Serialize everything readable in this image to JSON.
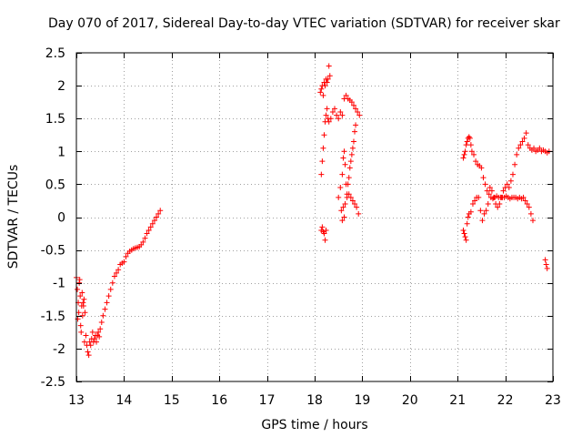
{
  "chart_data": {
    "type": "scatter",
    "title": "Day 070 of 2017, Sidereal Day-to-day VTEC variation (SDTVAR) for receiver skar",
    "xlabel": "GPS time / hours",
    "ylabel": "SDTVAR / TECUs",
    "xlim": [
      13,
      23
    ],
    "ylim": [
      -2.5,
      2.5
    ],
    "grid": true,
    "marker": "+",
    "color": "#ff0000",
    "x_ticks": [
      13,
      14,
      15,
      16,
      17,
      18,
      19,
      20,
      21,
      22,
      23
    ],
    "x_tick_labels": [
      "13",
      "14",
      "15",
      "16",
      "17",
      "18",
      "19",
      "20",
      "21",
      "22",
      "23"
    ],
    "y_ticks": [
      2.5,
      2,
      1.5,
      1,
      0.5,
      0,
      -0.5,
      -1,
      -1.5,
      -2,
      -2.5
    ],
    "y_tick_labels": [
      "2.5",
      "2",
      "1.5",
      "1",
      "0.5",
      "0",
      "-0.5",
      "-1",
      "-1.5",
      "-2",
      "-2.5"
    ],
    "series": [
      {
        "name": "SDTVAR",
        "points": [
          [
            13.0,
            -0.92
          ],
          [
            13.02,
            -1.1
          ],
          [
            13.03,
            -1.55
          ],
          [
            13.04,
            -1.3
          ],
          [
            13.05,
            -1.45
          ],
          [
            13.06,
            -1.0
          ],
          [
            13.07,
            -0.95
          ],
          [
            13.08,
            -1.2
          ],
          [
            13.09,
            -1.65
          ],
          [
            13.1,
            -1.75
          ],
          [
            13.11,
            -1.35
          ],
          [
            13.12,
            -1.15
          ],
          [
            13.13,
            -1.5
          ],
          [
            13.14,
            -1.3
          ],
          [
            13.15,
            -1.35
          ],
          [
            13.16,
            -1.25
          ],
          [
            13.17,
            -1.9
          ],
          [
            13.18,
            -1.45
          ],
          [
            13.2,
            -1.8
          ],
          [
            13.22,
            -1.95
          ],
          [
            13.24,
            -2.05
          ],
          [
            13.26,
            -2.1
          ],
          [
            13.28,
            -1.9
          ],
          [
            13.3,
            -1.95
          ],
          [
            13.32,
            -1.85
          ],
          [
            13.34,
            -1.75
          ],
          [
            13.36,
            -1.9
          ],
          [
            13.38,
            -1.85
          ],
          [
            13.4,
            -1.8
          ],
          [
            13.42,
            -1.9
          ],
          [
            13.44,
            -1.8
          ],
          [
            13.46,
            -1.75
          ],
          [
            13.48,
            -1.82
          ],
          [
            13.5,
            -1.7
          ],
          [
            13.53,
            -1.6
          ],
          [
            13.56,
            -1.5
          ],
          [
            13.6,
            -1.4
          ],
          [
            13.64,
            -1.3
          ],
          [
            13.68,
            -1.2
          ],
          [
            13.72,
            -1.1
          ],
          [
            13.76,
            -1.0
          ],
          [
            13.8,
            -0.9
          ],
          [
            13.84,
            -0.85
          ],
          [
            13.88,
            -0.8
          ],
          [
            13.92,
            -0.72
          ],
          [
            13.96,
            -0.7
          ],
          [
            14.0,
            -0.68
          ],
          [
            14.04,
            -0.6
          ],
          [
            14.08,
            -0.55
          ],
          [
            14.12,
            -0.52
          ],
          [
            14.16,
            -0.5
          ],
          [
            14.2,
            -0.48
          ],
          [
            14.24,
            -0.47
          ],
          [
            14.28,
            -0.46
          ],
          [
            14.32,
            -0.45
          ],
          [
            14.36,
            -0.42
          ],
          [
            14.4,
            -0.38
          ],
          [
            14.44,
            -0.32
          ],
          [
            14.48,
            -0.25
          ],
          [
            14.52,
            -0.2
          ],
          [
            14.56,
            -0.15
          ],
          [
            14.6,
            -0.1
          ],
          [
            14.64,
            -0.05
          ],
          [
            14.68,
            0.0
          ],
          [
            14.72,
            0.05
          ],
          [
            14.76,
            0.1
          ],
          [
            18.12,
            1.9
          ],
          [
            18.14,
            1.95
          ],
          [
            18.16,
            2.0
          ],
          [
            18.18,
            1.85
          ],
          [
            18.2,
            2.05
          ],
          [
            18.22,
            2.0
          ],
          [
            18.24,
            2.1
          ],
          [
            18.26,
            2.05
          ],
          [
            18.28,
            2.1
          ],
          [
            18.3,
            2.3
          ],
          [
            18.32,
            2.15
          ],
          [
            18.14,
            0.65
          ],
          [
            18.16,
            0.85
          ],
          [
            18.18,
            1.05
          ],
          [
            18.2,
            1.25
          ],
          [
            18.22,
            1.45
          ],
          [
            18.24,
            1.55
          ],
          [
            18.26,
            1.65
          ],
          [
            18.28,
            1.5
          ],
          [
            18.3,
            1.45
          ],
          [
            18.34,
            1.5
          ],
          [
            18.38,
            1.6
          ],
          [
            18.42,
            1.65
          ],
          [
            18.46,
            1.55
          ],
          [
            18.5,
            1.5
          ],
          [
            18.54,
            1.6
          ],
          [
            18.58,
            1.55
          ],
          [
            18.62,
            1.8
          ],
          [
            18.66,
            1.85
          ],
          [
            18.7,
            1.8
          ],
          [
            18.74,
            1.78
          ],
          [
            18.78,
            1.75
          ],
          [
            18.82,
            1.7
          ],
          [
            18.86,
            1.65
          ],
          [
            18.9,
            1.6
          ],
          [
            18.94,
            1.55
          ],
          [
            18.14,
            -0.2
          ],
          [
            18.16,
            -0.15
          ],
          [
            18.18,
            -0.22
          ],
          [
            18.2,
            -0.25
          ],
          [
            18.22,
            -0.35
          ],
          [
            18.24,
            -0.2
          ],
          [
            18.5,
            0.3
          ],
          [
            18.54,
            0.45
          ],
          [
            18.58,
            0.65
          ],
          [
            18.6,
            0.9
          ],
          [
            18.62,
            1.0
          ],
          [
            18.64,
            0.8
          ],
          [
            18.66,
            0.5
          ],
          [
            18.68,
            0.35
          ],
          [
            18.7,
            0.5
          ],
          [
            18.72,
            0.6
          ],
          [
            18.74,
            0.75
          ],
          [
            18.76,
            0.85
          ],
          [
            18.78,
            0.95
          ],
          [
            18.8,
            1.05
          ],
          [
            18.82,
            1.15
          ],
          [
            18.84,
            1.3
          ],
          [
            18.86,
            1.4
          ],
          [
            18.56,
            0.1
          ],
          [
            18.6,
            0.15
          ],
          [
            18.64,
            0.2
          ],
          [
            18.68,
            0.3
          ],
          [
            18.72,
            0.35
          ],
          [
            18.76,
            0.3
          ],
          [
            18.8,
            0.25
          ],
          [
            18.84,
            0.2
          ],
          [
            18.88,
            0.15
          ],
          [
            18.92,
            0.05
          ],
          [
            18.58,
            -0.05
          ],
          [
            18.62,
            0.0
          ],
          [
            21.12,
            0.9
          ],
          [
            21.14,
            0.95
          ],
          [
            21.16,
            1.0
          ],
          [
            21.18,
            1.1
          ],
          [
            21.2,
            1.15
          ],
          [
            21.22,
            1.2
          ],
          [
            21.24,
            1.22
          ],
          [
            21.26,
            1.2
          ],
          [
            21.28,
            1.1
          ],
          [
            21.3,
            1.0
          ],
          [
            21.34,
            0.95
          ],
          [
            21.38,
            0.85
          ],
          [
            21.42,
            0.8
          ],
          [
            21.46,
            0.78
          ],
          [
            21.5,
            0.75
          ],
          [
            21.54,
            0.6
          ],
          [
            21.58,
            0.5
          ],
          [
            21.62,
            0.4
          ],
          [
            21.66,
            0.35
          ],
          [
            21.7,
            0.3
          ],
          [
            21.74,
            0.28
          ],
          [
            21.78,
            0.3
          ],
          [
            21.82,
            0.32
          ],
          [
            21.86,
            0.3
          ],
          [
            21.9,
            0.3
          ],
          [
            21.94,
            0.3
          ],
          [
            21.98,
            0.3
          ],
          [
            22.02,
            0.32
          ],
          [
            22.06,
            0.3
          ],
          [
            22.1,
            0.28
          ],
          [
            22.14,
            0.3
          ],
          [
            22.18,
            0.3
          ],
          [
            22.22,
            0.3
          ],
          [
            22.26,
            0.28
          ],
          [
            22.3,
            0.3
          ],
          [
            22.34,
            0.28
          ],
          [
            22.38,
            0.3
          ],
          [
            22.42,
            0.25
          ],
          [
            22.46,
            0.2
          ],
          [
            22.5,
            0.15
          ],
          [
            22.54,
            0.05
          ],
          [
            22.58,
            -0.05
          ],
          [
            21.12,
            -0.2
          ],
          [
            21.14,
            -0.25
          ],
          [
            21.16,
            -0.3
          ],
          [
            21.18,
            -0.35
          ],
          [
            21.2,
            -0.1
          ],
          [
            21.22,
            0.0
          ],
          [
            21.24,
            0.05
          ],
          [
            21.28,
            0.08
          ],
          [
            21.32,
            0.2
          ],
          [
            21.36,
            0.25
          ],
          [
            21.4,
            0.3
          ],
          [
            21.44,
            0.3
          ],
          [
            21.48,
            0.1
          ],
          [
            21.52,
            -0.05
          ],
          [
            21.56,
            0.05
          ],
          [
            21.6,
            0.1
          ],
          [
            21.64,
            0.2
          ],
          [
            21.68,
            0.45
          ],
          [
            21.72,
            0.4
          ],
          [
            21.76,
            0.3
          ],
          [
            21.8,
            0.2
          ],
          [
            21.84,
            0.15
          ],
          [
            21.88,
            0.2
          ],
          [
            21.92,
            0.3
          ],
          [
            21.96,
            0.4
          ],
          [
            22.0,
            0.45
          ],
          [
            22.04,
            0.5
          ],
          [
            22.08,
            0.45
          ],
          [
            22.12,
            0.55
          ],
          [
            22.16,
            0.65
          ],
          [
            22.2,
            0.8
          ],
          [
            22.24,
            0.95
          ],
          [
            22.28,
            1.05
          ],
          [
            22.32,
            1.1
          ],
          [
            22.36,
            1.15
          ],
          [
            22.4,
            1.2
          ],
          [
            22.44,
            1.28
          ],
          [
            22.48,
            1.1
          ],
          [
            22.52,
            1.05
          ],
          [
            22.56,
            1.02
          ],
          [
            22.6,
            1.05
          ],
          [
            22.64,
            1.0
          ],
          [
            22.68,
            1.02
          ],
          [
            22.72,
            1.05
          ],
          [
            22.76,
            1.0
          ],
          [
            22.8,
            1.02
          ],
          [
            22.84,
            1.0
          ],
          [
            22.88,
            0.98
          ],
          [
            22.92,
            1.0
          ],
          [
            22.84,
            -0.65
          ],
          [
            22.86,
            -0.72
          ],
          [
            22.88,
            -0.78
          ]
        ]
      }
    ]
  }
}
